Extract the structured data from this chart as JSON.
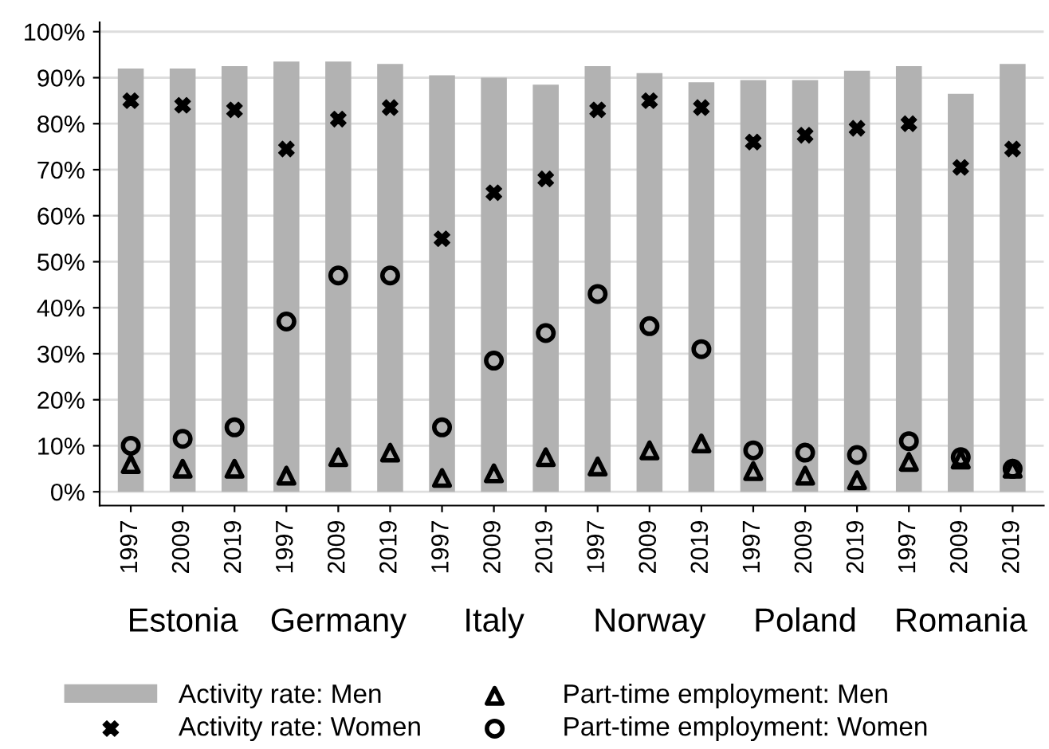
{
  "chart_data": {
    "type": "bar",
    "categories": [
      "1997",
      "2009",
      "2019",
      "1997",
      "2009",
      "2019",
      "1997",
      "2009",
      "2019",
      "1997",
      "2009",
      "2019",
      "1997",
      "2009",
      "2019",
      "1997",
      "2009",
      "2019"
    ],
    "annotations": [
      "Estonia",
      "Germany",
      "Italy",
      "Norway",
      "Poland",
      "Romania"
    ],
    "ylim": [
      -3,
      102
    ],
    "yticks": [
      {
        "value": 0,
        "label": "0%"
      },
      {
        "value": 10,
        "label": "10%"
      },
      {
        "value": 20,
        "label": "20%"
      },
      {
        "value": 30,
        "label": "30%"
      },
      {
        "value": 40,
        "label": "40%"
      },
      {
        "value": 50,
        "label": "50%"
      },
      {
        "value": 60,
        "label": "60%"
      },
      {
        "value": 70,
        "label": "70%"
      },
      {
        "value": 80,
        "label": "80%"
      },
      {
        "value": 90,
        "label": "90%"
      },
      {
        "value": 100,
        "label": "100%"
      }
    ],
    "grid": "y",
    "legend": "bottom",
    "series": [
      {
        "name": "Activity rate: Men",
        "color": "#b2b2b2",
        "values": [
          92,
          92,
          92.5,
          93.5,
          93.5,
          93,
          90.5,
          90,
          88.5,
          92.5,
          91,
          89,
          89.5,
          89.5,
          91.5,
          92.5,
          86.5,
          93
        ]
      },
      {
        "name": "Activity rate: Women",
        "type": "scatter",
        "marker": "cross",
        "color": "#000000",
        "values": [
          85,
          84,
          83,
          74.5,
          81,
          83.5,
          55,
          65,
          68,
          83,
          85,
          83.5,
          76,
          77.5,
          79,
          80,
          70.5,
          74.5
        ]
      },
      {
        "name": "Part-time employment: Men",
        "type": "scatter",
        "marker": "triangle",
        "color": "#000000",
        "values": [
          6,
          5,
          5,
          3.5,
          7.5,
          8.5,
          3,
          4,
          7.5,
          5.5,
          9,
          10.5,
          4.5,
          3.5,
          2.5,
          6.5,
          7,
          5
        ]
      },
      {
        "name": "Part-time employment: Women",
        "type": "scatter",
        "marker": "circle",
        "color": "#000000",
        "values": [
          10,
          11.5,
          14,
          37,
          47,
          47,
          14,
          28.5,
          34.5,
          43,
          36,
          31,
          9,
          8.5,
          8,
          11,
          7.5,
          5
        ]
      }
    ]
  }
}
